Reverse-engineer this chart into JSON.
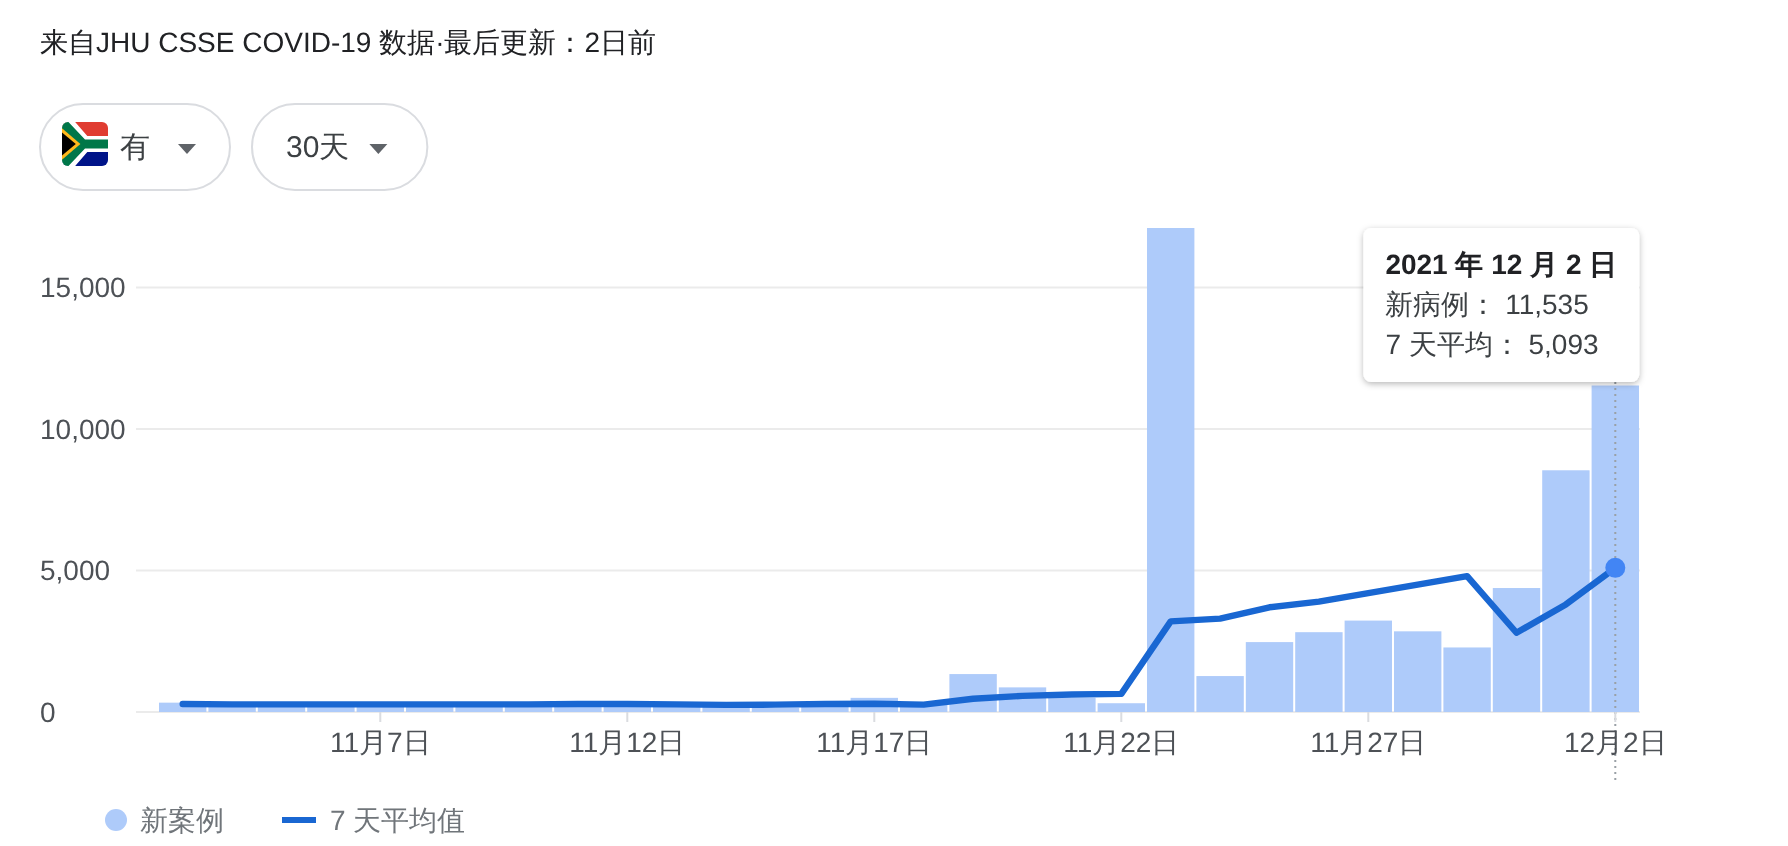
{
  "chart_data": {
    "type": "bar",
    "categories": [
      null,
      null,
      null,
      null,
      "11月7日",
      null,
      null,
      null,
      null,
      "11月12日",
      null,
      null,
      null,
      null,
      "11月17日",
      null,
      null,
      null,
      null,
      "11月22日",
      null,
      null,
      null,
      null,
      "11月27日",
      null,
      null,
      null,
      null,
      "12月2日"
    ],
    "series": [
      {
        "name": "新案例",
        "color": "#aecbfa",
        "values": [
          330,
          250,
          260,
          260,
          250,
          200,
          250,
          280,
          260,
          270,
          250,
          200,
          150,
          280,
          500,
          250,
          1340,
          870,
          500,
          310,
          17100,
          1270,
          2470,
          2820,
          3230,
          2850,
          2280,
          4380,
          8540,
          11535
        ]
      },
      {
        "name": "7 天平均值",
        "type": "line",
        "color": "#1967d2",
        "values": [
          280,
          270,
          270,
          270,
          270,
          270,
          270,
          270,
          280,
          280,
          270,
          250,
          260,
          280,
          290,
          260,
          470,
          570,
          620,
          640,
          3200,
          3300,
          3700,
          3900,
          4200,
          4500,
          4800,
          2800,
          3800,
          5093
        ]
      }
    ],
    "ylim": [
      0,
      17100
    ],
    "yticks": [
      0,
      {
        "value": 5000,
        "label": "5,000"
      },
      {
        "value": 10000,
        "label": "10,000"
      },
      {
        "value": 15000,
        "label": "15,000"
      }
    ],
    "grid": "y",
    "legend": "bottom",
    "ref_lines": [
      {
        "axis": "x",
        "value": "12月2日",
        "color": "#9aa0a6",
        "line_style": "dotted"
      }
    ],
    "annotations": [
      "来自JHU CSSE COVID-19 数据·最后更新：2日前",
      "有",
      "30天",
      "2021 年 12 月 2 日",
      "新病例： 11,535",
      "7 天平均： 5,093"
    ]
  }
}
